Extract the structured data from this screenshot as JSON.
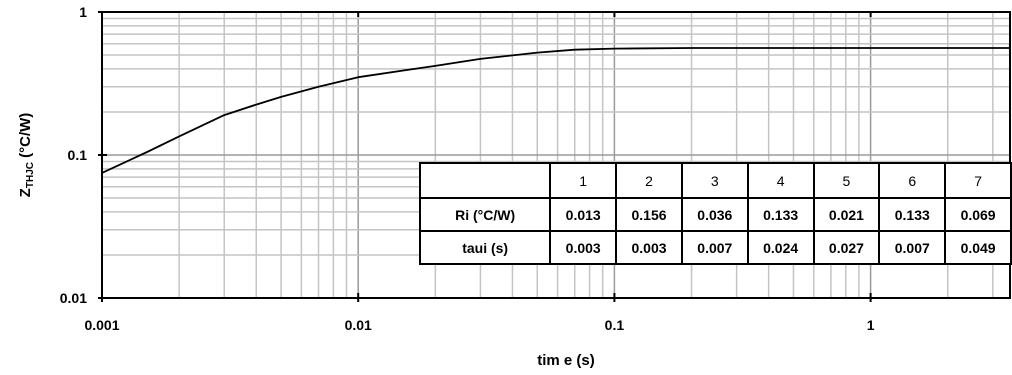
{
  "chart_data": {
    "type": "line",
    "x_scale": "log",
    "y_scale": "log",
    "xlim": [
      0.001,
      3.5
    ],
    "ylim": [
      0.01,
      1
    ],
    "grid": true,
    "xlabel": "tim e (s)",
    "ylabel_main": "Z",
    "ylabel_sub": "THJC",
    "ylabel_unit": " (°C/W)",
    "x_ticks": [
      {
        "value": 0.001,
        "label": "0.001"
      },
      {
        "value": 0.01,
        "label": "0.01"
      },
      {
        "value": 0.1,
        "label": "0.1"
      },
      {
        "value": 1,
        "label": "1"
      }
    ],
    "y_ticks": [
      {
        "value": 0.01,
        "label": "0.01"
      },
      {
        "value": 0.1,
        "label": "0.1"
      },
      {
        "value": 1,
        "label": "1"
      }
    ],
    "series": [
      {
        "color": "#000000",
        "x": [
          0.001,
          0.0015,
          0.002,
          0.003,
          0.004,
          0.005,
          0.007,
          0.01,
          0.015,
          0.02,
          0.03,
          0.05,
          0.07,
          0.1,
          0.2,
          0.5,
          1,
          2,
          3.5
        ],
        "y": [
          0.075,
          0.105,
          0.135,
          0.19,
          0.225,
          0.255,
          0.3,
          0.35,
          0.39,
          0.42,
          0.47,
          0.52,
          0.545,
          0.555,
          0.56,
          0.56,
          0.56,
          0.56,
          0.56
        ]
      }
    ]
  },
  "table": {
    "columns": [
      "1",
      "2",
      "3",
      "4",
      "5",
      "6",
      "7"
    ],
    "rows": [
      {
        "label": "Ri (°C/W)",
        "values": [
          "0.013",
          "0.156",
          "0.036",
          "0.133",
          "0.021",
          "0.133",
          "0.069"
        ]
      },
      {
        "label": "taui (s)",
        "values": [
          "0.003",
          "0.003",
          "0.007",
          "0.024",
          "0.027",
          "0.007",
          "0.049"
        ]
      }
    ]
  }
}
